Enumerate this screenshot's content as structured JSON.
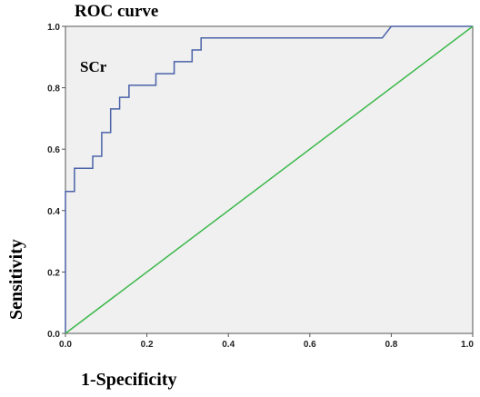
{
  "chart_data": {
    "type": "line",
    "title": "ROC curve",
    "xlabel": "1-Specificity",
    "ylabel": "Sensitivity",
    "xlim": [
      0.0,
      1.0
    ],
    "ylim": [
      0.0,
      1.0
    ],
    "x_ticks": [
      "0.0",
      "0.2",
      "0.4",
      "0.6",
      "0.8",
      "1.0"
    ],
    "y_ticks": [
      "0.0",
      "0.2",
      "0.4",
      "0.6",
      "0.8",
      "1.0"
    ],
    "series": [
      {
        "name": "SCr",
        "color": "#4a62a8",
        "x": [
          0.0,
          0.0,
          0.022,
          0.022,
          0.067,
          0.067,
          0.089,
          0.089,
          0.111,
          0.111,
          0.133,
          0.133,
          0.156,
          0.156,
          0.222,
          0.222,
          0.267,
          0.267,
          0.311,
          0.311,
          0.333,
          0.333,
          0.778,
          0.8,
          1.0
        ],
        "y": [
          0.0,
          0.462,
          0.462,
          0.538,
          0.538,
          0.577,
          0.577,
          0.654,
          0.654,
          0.731,
          0.731,
          0.769,
          0.769,
          0.808,
          0.808,
          0.846,
          0.846,
          0.885,
          0.885,
          0.923,
          0.923,
          0.962,
          0.962,
          1.0,
          1.0
        ]
      },
      {
        "color": "#3cb84a",
        "x": [
          0.0,
          1.0
        ],
        "y": [
          0.0,
          1.0
        ]
      }
    ],
    "grid": false,
    "plot_background": "#f0f0f0"
  }
}
